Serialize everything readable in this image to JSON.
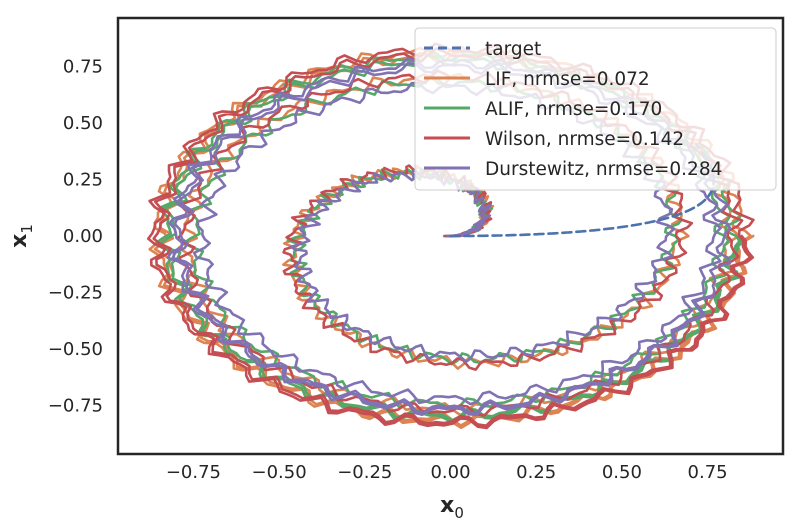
{
  "chart_data": {
    "type": "line",
    "xlabel": "x",
    "xlabel_sub": "0",
    "ylabel": "x",
    "ylabel_sub": "1",
    "xlim": [
      -0.97,
      0.97
    ],
    "ylim": [
      -0.965,
      0.965
    ],
    "xticks": [
      -0.75,
      -0.5,
      -0.25,
      0.0,
      0.25,
      0.5,
      0.75
    ],
    "xtick_labels": [
      "−0.75",
      "−0.50",
      "−0.25",
      "0.00",
      "0.25",
      "0.50",
      "0.75"
    ],
    "yticks": [
      0.75,
      0.5,
      0.25,
      0.0,
      -0.25,
      -0.5,
      -0.75
    ],
    "ytick_labels": [
      "0.75",
      "0.50",
      "0.25",
      "0.00",
      "−0.25",
      "−0.50",
      "−0.75"
    ],
    "grid": false,
    "legend_position": "top-right",
    "series": [
      {
        "name": "target",
        "color": "#4c72b0",
        "style": "dashed",
        "start_angle_deg": 0,
        "sweep_deg": 30,
        "radius_start": 0.0,
        "radius_end": 0.83,
        "center": [
          0.0,
          0.0
        ]
      },
      {
        "name": "LIF, nrmse=0.072",
        "color": "#dd8452",
        "style": "solid",
        "start_angle_deg": 0,
        "sweep_deg": 1440,
        "radius_start": 0.0,
        "radius_end": 0.84,
        "center": [
          0.0,
          0.0
        ]
      },
      {
        "name": "ALIF, nrmse=0.170",
        "color": "#55a868",
        "style": "solid",
        "start_angle_deg": 0,
        "sweep_deg": 1440,
        "radius_start": 0.0,
        "radius_end": 0.82,
        "center": [
          0.0,
          0.0
        ]
      },
      {
        "name": "Wilson, nrmse=0.142",
        "color": "#c44e52",
        "style": "solid",
        "start_angle_deg": 0,
        "sweep_deg": 1440,
        "radius_start": 0.0,
        "radius_end": 0.85,
        "center": [
          0.0,
          0.0
        ]
      },
      {
        "name": "Durstewitz, nrmse=0.284",
        "color": "#8172b3",
        "style": "solid",
        "start_angle_deg": 0,
        "sweep_deg": 1420,
        "radius_start": 0.0,
        "radius_end": 0.79,
        "center": [
          0.0,
          0.0
        ]
      }
    ]
  }
}
